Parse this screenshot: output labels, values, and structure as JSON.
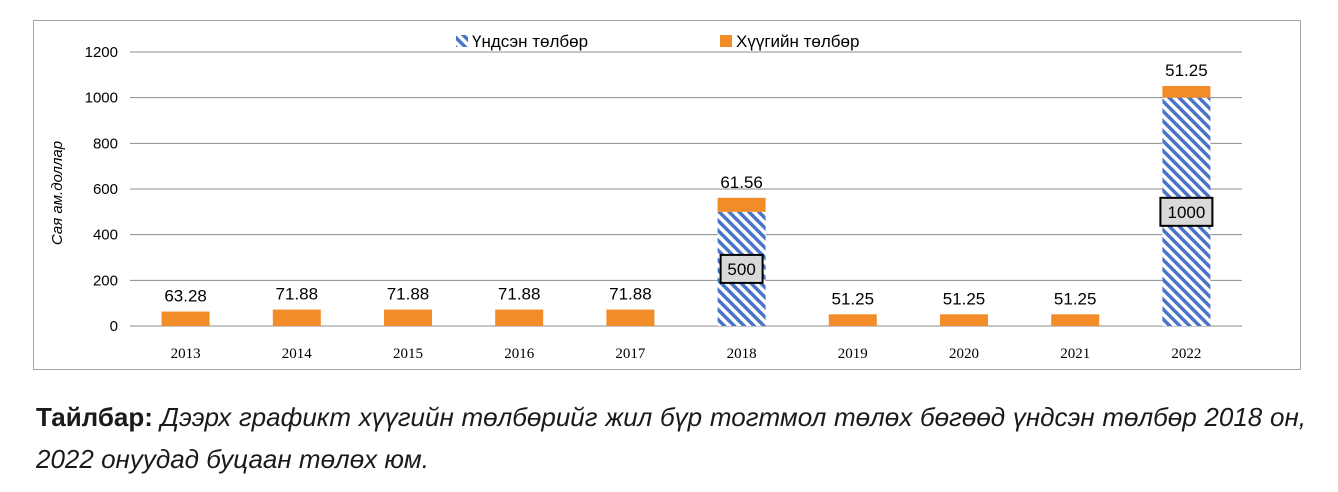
{
  "chart_data": {
    "type": "bar",
    "stacked": true,
    "categories": [
      "2013",
      "2014",
      "2015",
      "2016",
      "2017",
      "2018",
      "2019",
      "2020",
      "2021",
      "2022"
    ],
    "series": [
      {
        "name": "Үндсэн төлбөр",
        "values": [
          0,
          0,
          0,
          0,
          0,
          500,
          0,
          0,
          0,
          1000
        ],
        "color": "#4472c4",
        "pattern": "diagonal-hatch"
      },
      {
        "name": "Хүүгийн төлбөр",
        "values": [
          63.28,
          71.88,
          71.88,
          71.88,
          71.88,
          61.56,
          51.25,
          51.25,
          51.25,
          51.25
        ],
        "color": "#f28c28"
      }
    ],
    "top_labels": [
      "63.28",
      "71.88",
      "71.88",
      "71.88",
      "71.88",
      "61.56",
      "51.25",
      "51.25",
      "51.25",
      "51.25"
    ],
    "inner_labels": [
      "",
      "",
      "",
      "",
      "",
      "500",
      "",
      "",
      "",
      "1000"
    ],
    "ylabel": "Сая ам.доллар",
    "xlabel": "",
    "ylim": [
      0,
      1200
    ],
    "yticks": [
      0,
      200,
      400,
      600,
      800,
      1000,
      1200
    ],
    "grid": true,
    "legend": "top-center"
  },
  "caption": {
    "lead": "Тайлбар:",
    "body": "Дээрх графикт хүүгийн төлбөрийг жил бүр тогтмол төлөх бөгөөд үндсэн төлбөр 2018 он, 2022 онуудад буцаан төлөх юм."
  }
}
